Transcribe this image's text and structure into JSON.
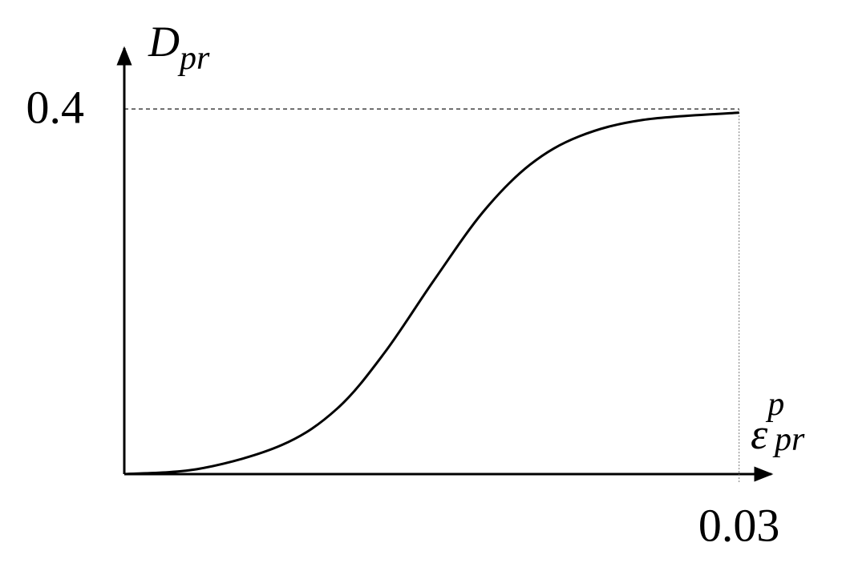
{
  "chart_data": {
    "type": "line",
    "y_label": "D",
    "y_label_sub": "pr",
    "x_label": "ε",
    "x_label_sub": "pr",
    "x_label_sup": "p",
    "x": [
      0,
      0.0037,
      0.0077,
      0.0104,
      0.0127,
      0.0151,
      0.0175,
      0.0198,
      0.0222,
      0.0253,
      0.03
    ],
    "values": [
      0,
      0.006,
      0.032,
      0.072,
      0.133,
      0.212,
      0.287,
      0.339,
      0.37,
      0.388,
      0.396
    ],
    "color": "#000000",
    "xlim": [
      0,
      0.0315
    ],
    "ylim": [
      0,
      0.465
    ],
    "xticks": [
      0.03
    ],
    "yticks": [
      0.4
    ]
  }
}
